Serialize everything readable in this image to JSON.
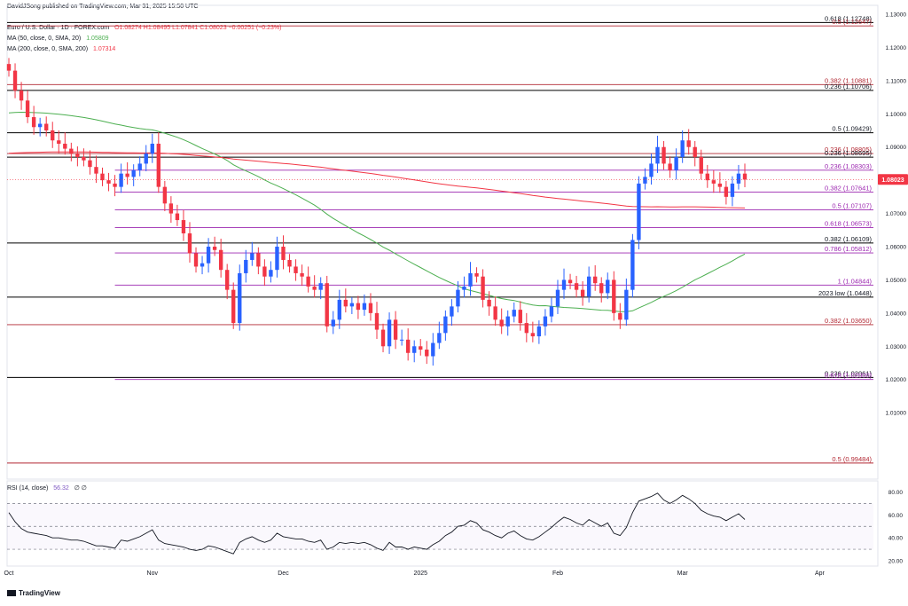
{
  "header": {
    "published": "DavidJSong published on TradingView.com, Mar 31, 2025 15:50 UTC",
    "instrument": "Euro / U.S. Dollar · 1D · FOREX.com",
    "ohlc": "O1.08274 H1.08495 L1.07841 C1.08023 −0.00251 (−0.23%)",
    "ma50": "MA (50, close, 0, SMA, 20)",
    "ma50_value": "1.05809",
    "ma200": "MA (200, close, 0, SMA, 200)",
    "ma200_value": "1.07314",
    "rsi": "RSI (14, close)",
    "rsi_value": "56.32",
    "rsi_tail": "∅ ∅"
  },
  "brand": "TradingView",
  "colors": {
    "up": "#2962ff",
    "down": "#f23645",
    "ma50": "#4caf50",
    "ma200": "#f23645",
    "fib_red": "#b22833",
    "fib_purple": "#9c27b0",
    "level_black": "#000000",
    "rsi_line": "#131722"
  },
  "chart_data": {
    "type": "candlestick",
    "instrument": "EUR/USD",
    "timeframe": "1D",
    "ylim": [
      0.99,
      1.13
    ],
    "price_ticks": [
      "1.13000",
      "1.12000",
      "1.11000",
      "1.10000",
      "1.09000",
      "1.08000",
      "1.07000",
      "1.06000",
      "1.05000",
      "1.04000",
      "1.03000",
      "1.02000",
      "1.01000"
    ],
    "date_ticks": [
      {
        "label": "Oct",
        "index": 0
      },
      {
        "label": "Nov",
        "index": 23
      },
      {
        "label": "Dec",
        "index": 44
      },
      {
        "label": "2025",
        "index": 66
      },
      {
        "label": "Feb",
        "index": 88
      },
      {
        "label": "Mar",
        "index": 108
      },
      {
        "label": "Apr",
        "index": 130
      }
    ],
    "last_price": {
      "label": "1.08023",
      "value": 1.08023
    },
    "levels": [
      {
        "label": "0.618 (1.12748)",
        "value": 1.12748,
        "color": "black",
        "start_index": 0
      },
      {
        "label": "0.5 (1.12647)",
        "value": 1.12647,
        "color": "red",
        "start_index": 0
      },
      {
        "label": "0.382 (1.10881)",
        "value": 1.10881,
        "color": "red",
        "start_index": 0
      },
      {
        "label": "0.236 (1.10706)",
        "value": 1.10706,
        "color": "black",
        "start_index": 0
      },
      {
        "label": "0.5 (1.09429)",
        "value": 1.09429,
        "color": "black",
        "start_index": 0
      },
      {
        "label": "0.236 (1.08805)",
        "value": 1.08805,
        "color": "red",
        "start_index": 0
      },
      {
        "label": "0.236 (1.08695)",
        "value": 1.08695,
        "color": "black",
        "start_index": 0
      },
      {
        "label": "0.236 (1.08303)",
        "value": 1.08303,
        "color": "purple",
        "start_index": 17
      },
      {
        "label": "0.382 (1.07641)",
        "value": 1.07641,
        "color": "purple",
        "start_index": 17
      },
      {
        "label": "0.5 (1.07107)",
        "value": 1.07107,
        "color": "purple",
        "start_index": 17
      },
      {
        "label": "0.618 (1.06573)",
        "value": 1.06573,
        "color": "purple",
        "start_index": 17
      },
      {
        "label": "0.382 (1.06109)",
        "value": 1.06109,
        "color": "black",
        "start_index": 0
      },
      {
        "label": "0.786 (1.05812)",
        "value": 1.05812,
        "color": "purple",
        "start_index": 17
      },
      {
        "label": "1 (1.04844)",
        "value": 1.04844,
        "color": "purple",
        "start_index": 17
      },
      {
        "label": "2023 low (1.0448)",
        "value": 1.0448,
        "color": "black",
        "start_index": 0
      },
      {
        "label": "0.382 (1.03650)",
        "value": 1.0365,
        "color": "red",
        "start_index": 0
      },
      {
        "label": "0.236 (1.02061)",
        "value": 1.02061,
        "color": "black",
        "start_index": 0
      },
      {
        "label": "0.618 (1.02000)",
        "value": 1.02,
        "color": "purple",
        "start_index": 17
      },
      {
        "label": "0.5 (0.99484)",
        "value": 0.99484,
        "color": "red",
        "start_index": 0
      }
    ],
    "closes": [
      1.113,
      1.107,
      1.104,
      1.099,
      1.096,
      1.097,
      1.095,
      1.092,
      1.091,
      1.0895,
      1.088,
      1.087,
      1.086,
      1.084,
      1.082,
      1.08,
      1.079,
      1.078,
      1.082,
      1.081,
      1.083,
      1.085,
      1.088,
      1.091,
      1.078,
      1.073,
      1.07,
      1.068,
      1.064,
      1.058,
      1.054,
      1.055,
      1.06,
      1.059,
      1.053,
      1.047,
      1.037,
      1.052,
      1.056,
      1.058,
      1.054,
      1.051,
      1.053,
      1.06,
      1.056,
      1.054,
      1.052,
      1.051,
      1.048,
      1.047,
      1.049,
      1.036,
      1.038,
      1.044,
      1.042,
      1.043,
      1.041,
      1.043,
      1.04,
      1.035,
      1.03,
      1.038,
      1.032,
      1.032,
      1.028,
      1.03,
      1.029,
      1.027,
      1.031,
      1.034,
      1.039,
      1.042,
      1.047,
      1.048,
      1.052,
      1.051,
      1.044,
      1.042,
      1.038,
      1.036,
      1.039,
      1.041,
      1.037,
      1.034,
      1.033,
      1.036,
      1.039,
      1.042,
      1.047,
      1.05,
      1.049,
      1.047,
      1.045,
      1.051,
      1.049,
      1.046,
      1.05,
      1.04,
      1.038,
      1.047,
      1.062,
      1.079,
      1.081,
      1.085,
      1.09,
      1.085,
      1.083,
      1.087,
      1.092,
      1.09,
      1.087,
      1.082,
      1.08,
      1.079,
      1.078,
      1.075,
      1.079,
      1.082,
      1.0802
    ],
    "rsi": {
      "ylim": [
        20,
        85
      ],
      "ticks": [
        "80.00",
        "60.00",
        "40.00",
        "20.00"
      ],
      "bands": [
        70,
        50,
        30
      ],
      "values": [
        62,
        54,
        48,
        45,
        44,
        43,
        42,
        40,
        40,
        39,
        38,
        38,
        37,
        35,
        33,
        33,
        32,
        31,
        38,
        37,
        39,
        41,
        44,
        47,
        38,
        35,
        34,
        33,
        32,
        30,
        29,
        30,
        33,
        32,
        30,
        28,
        26,
        36,
        39,
        41,
        38,
        36,
        38,
        44,
        41,
        40,
        39,
        39,
        37,
        36,
        38,
        30,
        32,
        36,
        35,
        36,
        35,
        36,
        34,
        31,
        29,
        36,
        32,
        32,
        30,
        32,
        31,
        30,
        34,
        37,
        42,
        45,
        50,
        51,
        55,
        53,
        47,
        45,
        42,
        40,
        44,
        46,
        42,
        39,
        38,
        41,
        45,
        49,
        54,
        58,
        56,
        53,
        51,
        56,
        53,
        50,
        53,
        44,
        42,
        49,
        62,
        72,
        74,
        76,
        79,
        73,
        70,
        73,
        77,
        74,
        70,
        64,
        61,
        59,
        58,
        55,
        58,
        61,
        56
      ]
    }
  }
}
